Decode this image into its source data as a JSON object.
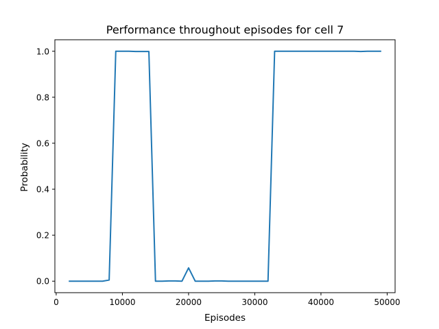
{
  "chart_data": {
    "type": "line",
    "title": "Performance throughout episodes for cell 7",
    "xlabel": "Episodes",
    "ylabel": "Probability",
    "xlim": [
      -200,
      51200
    ],
    "ylim": [
      -0.05,
      1.05
    ],
    "xticks": [
      0,
      10000,
      20000,
      30000,
      40000,
      50000
    ],
    "xtick_labels": [
      "0",
      "10000",
      "20000",
      "30000",
      "40000",
      "50000"
    ],
    "yticks": [
      0.0,
      0.2,
      0.4,
      0.6,
      0.8,
      1.0
    ],
    "ytick_labels": [
      "0.0",
      "0.2",
      "0.4",
      "0.6",
      "0.8",
      "1.0"
    ],
    "grid": false,
    "series": [
      {
        "color": "#1f77b4",
        "x": [
          2000,
          3000,
          4000,
          5000,
          6000,
          7000,
          8000,
          9000,
          10000,
          11000,
          12000,
          13000,
          14000,
          15000,
          16000,
          17000,
          18000,
          19000,
          20000,
          21000,
          22000,
          23000,
          24000,
          25000,
          26000,
          27000,
          28000,
          29000,
          30000,
          31000,
          32000,
          33000,
          34000,
          35000,
          36000,
          37000,
          38000,
          39000,
          40000,
          41000,
          42000,
          43000,
          44000,
          45000,
          46000,
          47000,
          48000,
          49000
        ],
        "y": [
          0.0,
          0.0,
          0.0,
          0.0,
          0.0,
          0.0,
          0.005,
          1.0,
          1.0,
          1.0,
          0.999,
          0.999,
          0.999,
          0.0,
          0.0,
          0.001,
          0.001,
          0.0,
          0.058,
          0.0,
          0.0,
          0.0,
          0.001,
          0.001,
          0.0,
          0.0,
          0.0,
          0.0,
          0.0,
          0.0,
          0.0,
          1.0,
          1.0,
          1.0,
          1.0,
          1.0,
          1.0,
          1.0,
          1.0,
          1.0,
          1.0,
          1.0,
          1.0,
          1.0,
          0.999,
          1.0,
          1.0,
          1.0
        ]
      }
    ]
  }
}
